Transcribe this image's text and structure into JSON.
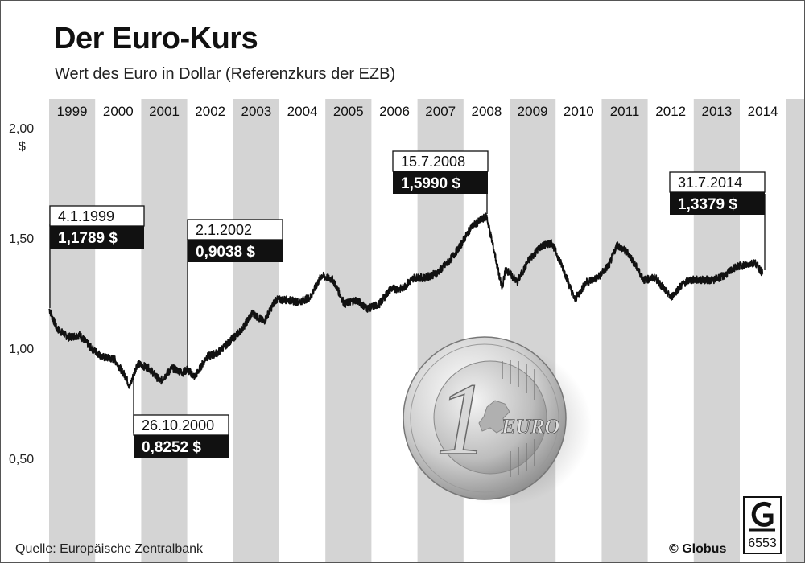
{
  "header": {
    "title": "Der Euro-Kurs",
    "subtitle": "Wert des Euro in Dollar (Referenzkurs der EZB)"
  },
  "footer": {
    "source": "Quelle: Europäische Zentralbank",
    "copyright": "© Globus",
    "logo_code": "6553"
  },
  "coin": {
    "denomination": "1",
    "label": "EURO"
  },
  "colors": {
    "band": "#d4d4d4",
    "line": "#111111",
    "label_dark": "#111111",
    "label_light": "#ffffff"
  },
  "chart_data": {
    "type": "line",
    "title": "Der Euro-Kurs",
    "subtitle": "Wert des Euro in Dollar (Referenzkurs der EZB)",
    "xlabel": "",
    "ylabel": "$",
    "ylim": [
      0.5,
      2.0
    ],
    "y_ticks": [
      {
        "value": 2.0,
        "label": "2,00"
      },
      {
        "value": 1.5,
        "label": "1,50"
      },
      {
        "value": 1.0,
        "label": "1,00"
      },
      {
        "value": 0.5,
        "label": "0,50"
      }
    ],
    "xlim": [
      "1999",
      "2014.6"
    ],
    "x_tick_labels": [
      "1999",
      "2000",
      "2001",
      "2002",
      "2003",
      "2004",
      "2005",
      "2006",
      "2007",
      "2008",
      "2009",
      "2010",
      "2011",
      "2012",
      "2013",
      "2014"
    ],
    "grid": false,
    "alternating_year_bands": true,
    "series": [
      {
        "x": [
          "1999-01",
          "1999-03",
          "1999-06",
          "1999-09",
          "1999-12",
          "2000-03",
          "2000-06",
          "2000-09",
          "2000-10",
          "2000-12",
          "2001-03",
          "2001-06",
          "2001-09",
          "2001-12",
          "2002-01",
          "2002-03",
          "2002-06",
          "2002-09",
          "2002-12",
          "2003-03",
          "2003-06",
          "2003-09",
          "2003-12",
          "2004-03",
          "2004-06",
          "2004-09",
          "2004-12",
          "2005-03",
          "2005-06",
          "2005-09",
          "2005-12",
          "2006-03",
          "2006-06",
          "2006-09",
          "2006-12",
          "2007-03",
          "2007-06",
          "2007-09",
          "2007-12",
          "2008-03",
          "2008-07",
          "2008-09",
          "2008-11",
          "2008-12",
          "2009-03",
          "2009-06",
          "2009-09",
          "2009-12",
          "2010-03",
          "2010-06",
          "2010-09",
          "2010-12",
          "2011-03",
          "2011-05",
          "2011-08",
          "2011-12",
          "2012-03",
          "2012-07",
          "2012-10",
          "2012-12",
          "2013-03",
          "2013-06",
          "2013-09",
          "2013-12",
          "2014-03",
          "2014-05",
          "2014-07"
        ],
        "values": [
          1.1789,
          1.09,
          1.05,
          1.06,
          1.0,
          0.96,
          0.95,
          0.87,
          0.8252,
          0.93,
          0.91,
          0.85,
          0.91,
          0.89,
          0.9038,
          0.87,
          0.96,
          0.98,
          1.03,
          1.08,
          1.16,
          1.12,
          1.22,
          1.22,
          1.21,
          1.23,
          1.33,
          1.31,
          1.2,
          1.22,
          1.18,
          1.2,
          1.27,
          1.27,
          1.32,
          1.32,
          1.34,
          1.39,
          1.46,
          1.55,
          1.599,
          1.44,
          1.27,
          1.36,
          1.3,
          1.4,
          1.46,
          1.48,
          1.36,
          1.22,
          1.3,
          1.32,
          1.38,
          1.47,
          1.43,
          1.31,
          1.32,
          1.23,
          1.29,
          1.31,
          1.31,
          1.31,
          1.33,
          1.37,
          1.38,
          1.39,
          1.3379
        ]
      }
    ],
    "annotations": [
      {
        "date": "4.1.1999",
        "value": "1,1789 $"
      },
      {
        "date": "26.10.2000",
        "value": "0,8252 $"
      },
      {
        "date": "2.1.2002",
        "value": "0,9038 $"
      },
      {
        "date": "15.7.2008",
        "value": "1,5990 $"
      },
      {
        "date": "31.7.2014",
        "value": "1,3379 $"
      }
    ]
  }
}
